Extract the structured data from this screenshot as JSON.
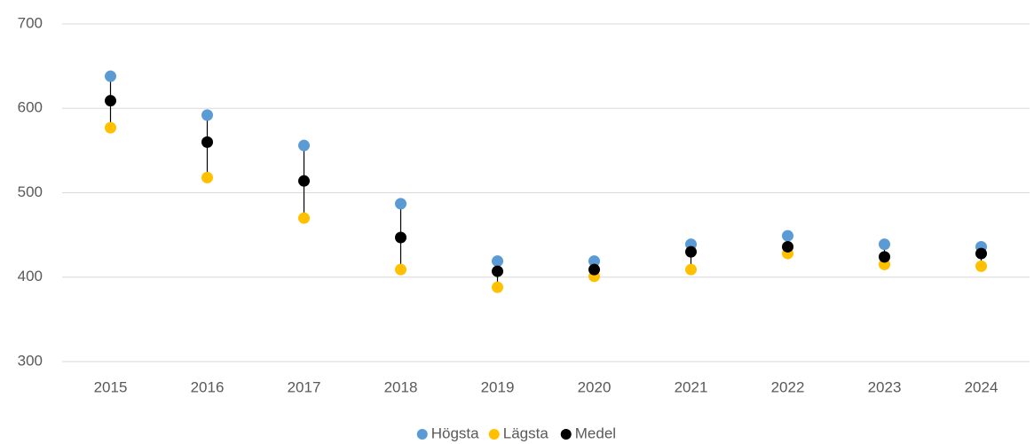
{
  "chart_data": {
    "type": "dot",
    "categories": [
      "2015",
      "2016",
      "2017",
      "2018",
      "2019",
      "2020",
      "2021",
      "2022",
      "2023",
      "2024"
    ],
    "series": [
      {
        "name": "Högsta",
        "color": "#5b9bd5",
        "values": [
          638,
          592,
          556,
          487,
          419,
          419,
          439,
          449,
          439,
          436
        ]
      },
      {
        "name": "Lägsta",
        "color": "#ffc000",
        "values": [
          577,
          518,
          470,
          409,
          388,
          401,
          409,
          428,
          415,
          413
        ]
      },
      {
        "name": "Medel",
        "color": "#000000",
        "values": [
          609,
          560,
          514,
          447,
          407,
          409,
          430,
          436,
          424,
          428
        ]
      }
    ],
    "ylim": [
      300,
      700
    ],
    "yticks": [
      300,
      400,
      500,
      600,
      700
    ],
    "grid": true,
    "legend": "bottom"
  }
}
